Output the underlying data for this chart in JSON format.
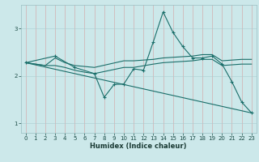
{
  "xlabel": "Humidex (Indice chaleur)",
  "xlim": [
    -0.5,
    23.5
  ],
  "ylim": [
    0.8,
    3.5
  ],
  "yticks": [
    1,
    2,
    3
  ],
  "xticks": [
    0,
    1,
    2,
    3,
    4,
    5,
    6,
    7,
    8,
    9,
    10,
    11,
    12,
    13,
    14,
    15,
    16,
    17,
    18,
    19,
    20,
    21,
    22,
    23
  ],
  "bg_color": "#cce8ea",
  "grid_color": "#aacdd0",
  "line_color": "#1a6e6a",
  "lines": [
    {
      "x": [
        0,
        3,
        5,
        7,
        8,
        9,
        10,
        11,
        12,
        13,
        14,
        15,
        16,
        17,
        18,
        19,
        20,
        21,
        22,
        23
      ],
      "y": [
        2.28,
        2.42,
        2.18,
        2.05,
        1.55,
        1.82,
        1.83,
        2.15,
        2.12,
        2.72,
        3.35,
        2.92,
        2.62,
        2.38,
        2.38,
        2.42,
        2.25,
        1.88,
        1.45,
        1.22
      ],
      "marker": "+"
    },
    {
      "x": [
        0,
        2,
        3,
        4,
        5,
        6,
        7,
        10,
        11,
        13,
        14,
        17,
        18,
        19,
        20,
        22,
        23
      ],
      "y": [
        2.28,
        2.22,
        2.38,
        2.28,
        2.22,
        2.2,
        2.18,
        2.32,
        2.32,
        2.35,
        2.38,
        2.42,
        2.45,
        2.45,
        2.32,
        2.35,
        2.35
      ],
      "marker": null
    },
    {
      "x": [
        0,
        2,
        3,
        4,
        5,
        6,
        7,
        10,
        11,
        13,
        14,
        17,
        18,
        19,
        20,
        22,
        23
      ],
      "y": [
        2.28,
        2.22,
        2.22,
        2.18,
        2.12,
        2.08,
        2.05,
        2.18,
        2.18,
        2.25,
        2.28,
        2.32,
        2.35,
        2.35,
        2.22,
        2.25,
        2.25
      ],
      "marker": null
    },
    {
      "x": [
        0,
        23
      ],
      "y": [
        2.28,
        1.22
      ],
      "marker": null
    }
  ]
}
